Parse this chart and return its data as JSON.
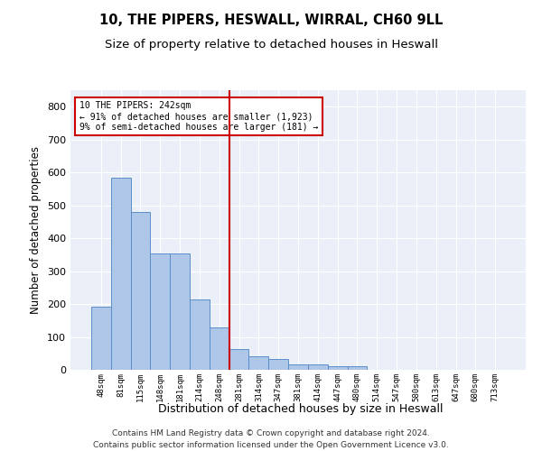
{
  "title": "10, THE PIPERS, HESWALL, WIRRAL, CH60 9LL",
  "subtitle": "Size of property relative to detached houses in Heswall",
  "xlabel": "Distribution of detached houses by size in Heswall",
  "ylabel": "Number of detached properties",
  "footnote1": "Contains HM Land Registry data © Crown copyright and database right 2024.",
  "footnote2": "Contains public sector information licensed under the Open Government Licence v3.0.",
  "bar_labels": [
    "48sqm",
    "81sqm",
    "115sqm",
    "148sqm",
    "181sqm",
    "214sqm",
    "248sqm",
    "281sqm",
    "314sqm",
    "347sqm",
    "381sqm",
    "414sqm",
    "447sqm",
    "480sqm",
    "514sqm",
    "547sqm",
    "580sqm",
    "613sqm",
    "647sqm",
    "680sqm",
    "713sqm"
  ],
  "bar_values": [
    192,
    585,
    480,
    353,
    353,
    215,
    130,
    62,
    40,
    33,
    16,
    16,
    10,
    10,
    0,
    0,
    0,
    0,
    0,
    0,
    0
  ],
  "bar_color": "#aec6e8",
  "bar_edge_color": "#5b8fc9",
  "vline_x": 6,
  "vline_color": "#cc0000",
  "annotation_line1": "10 THE PIPERS: 242sqm",
  "annotation_line2": "← 91% of detached houses are smaller (1,923)",
  "annotation_line3": "9% of semi-detached houses are larger (181) →",
  "annotation_box_color": "#cc0000",
  "ylim": [
    0,
    850
  ],
  "yticks": [
    0,
    100,
    200,
    300,
    400,
    500,
    600,
    700,
    800
  ],
  "background_color": "#eaeff8",
  "grid_color": "#ffffff",
  "title_fontsize": 10.5,
  "subtitle_fontsize": 9.5,
  "ylabel_fontsize": 8.5,
  "xlabel_fontsize": 9.0,
  "footnote_fontsize": 6.5
}
